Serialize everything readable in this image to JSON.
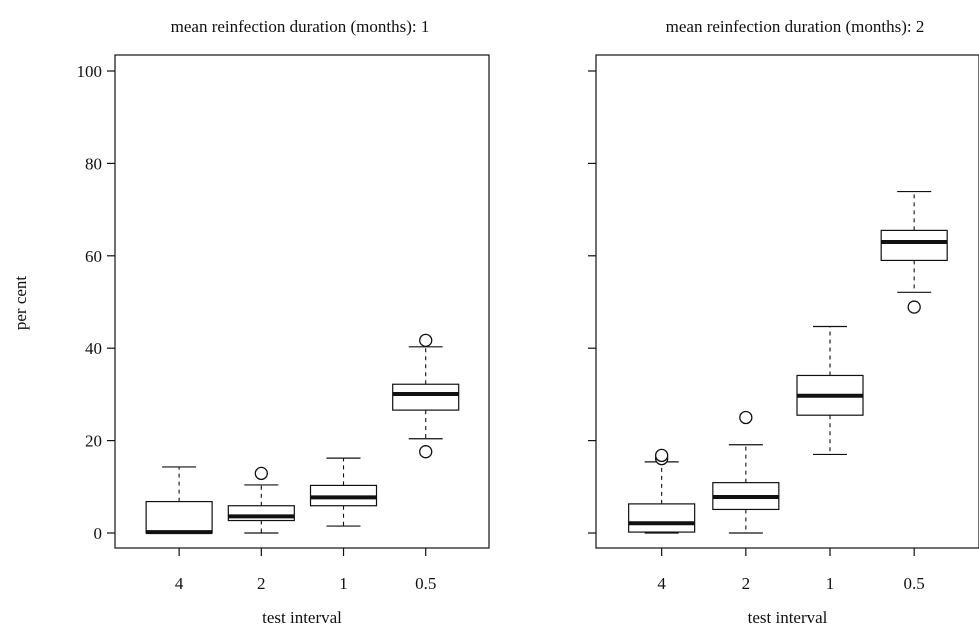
{
  "y_axis_label": "per cent",
  "chart_data": [
    {
      "type": "boxplot",
      "title": "mean reinfection duration (months): 1",
      "xlabel": "test interval",
      "ylabel": "per cent",
      "ylim": [
        0,
        100
      ],
      "yticks": [
        0,
        20,
        40,
        60,
        80,
        100
      ],
      "show_yticks_labels": true,
      "categories": [
        "4",
        "2",
        "1",
        "0.5"
      ],
      "boxes": [
        {
          "category": "4",
          "whisker_low": 0,
          "q1": 0,
          "median": 0.2,
          "q3": 6.8,
          "whisker_high": 14.3,
          "outliers": []
        },
        {
          "category": "2",
          "whisker_low": 0,
          "q1": 2.7,
          "median": 3.6,
          "q3": 5.9,
          "whisker_high": 10.4,
          "outliers": [
            12.9
          ]
        },
        {
          "category": "1",
          "whisker_low": 1.5,
          "q1": 5.9,
          "median": 7.7,
          "q3": 10.3,
          "whisker_high": 16.2,
          "outliers": []
        },
        {
          "category": "0.5",
          "whisker_low": 20.4,
          "q1": 26.6,
          "median": 30.1,
          "q3": 32.2,
          "whisker_high": 40.3,
          "outliers": [
            41.7,
            17.6
          ]
        }
      ]
    },
    {
      "type": "boxplot",
      "title": "mean reinfection duration (months): 2",
      "xlabel": "test interval",
      "ylabel": "",
      "ylim": [
        0,
        100
      ],
      "yticks": [
        0,
        20,
        40,
        60,
        80,
        100
      ],
      "show_yticks_labels": false,
      "categories": [
        "4",
        "2",
        "1",
        "0.5"
      ],
      "boxes": [
        {
          "category": "4",
          "whisker_low": 0,
          "q1": 0.2,
          "median": 2.1,
          "q3": 6.3,
          "whisker_high": 15.4,
          "outliers": [
            16.1,
            16.8
          ]
        },
        {
          "category": "2",
          "whisker_low": 0,
          "q1": 5.1,
          "median": 7.8,
          "q3": 10.9,
          "whisker_high": 19.1,
          "outliers": [
            25.0
          ]
        },
        {
          "category": "1",
          "whisker_low": 17.0,
          "q1": 25.5,
          "median": 29.7,
          "q3": 34.1,
          "whisker_high": 44.7,
          "outliers": []
        },
        {
          "category": "0.5",
          "whisker_low": 52.1,
          "q1": 59.0,
          "median": 63.0,
          "q3": 65.5,
          "whisker_high": 73.9,
          "outliers": [
            48.9
          ]
        }
      ]
    }
  ]
}
